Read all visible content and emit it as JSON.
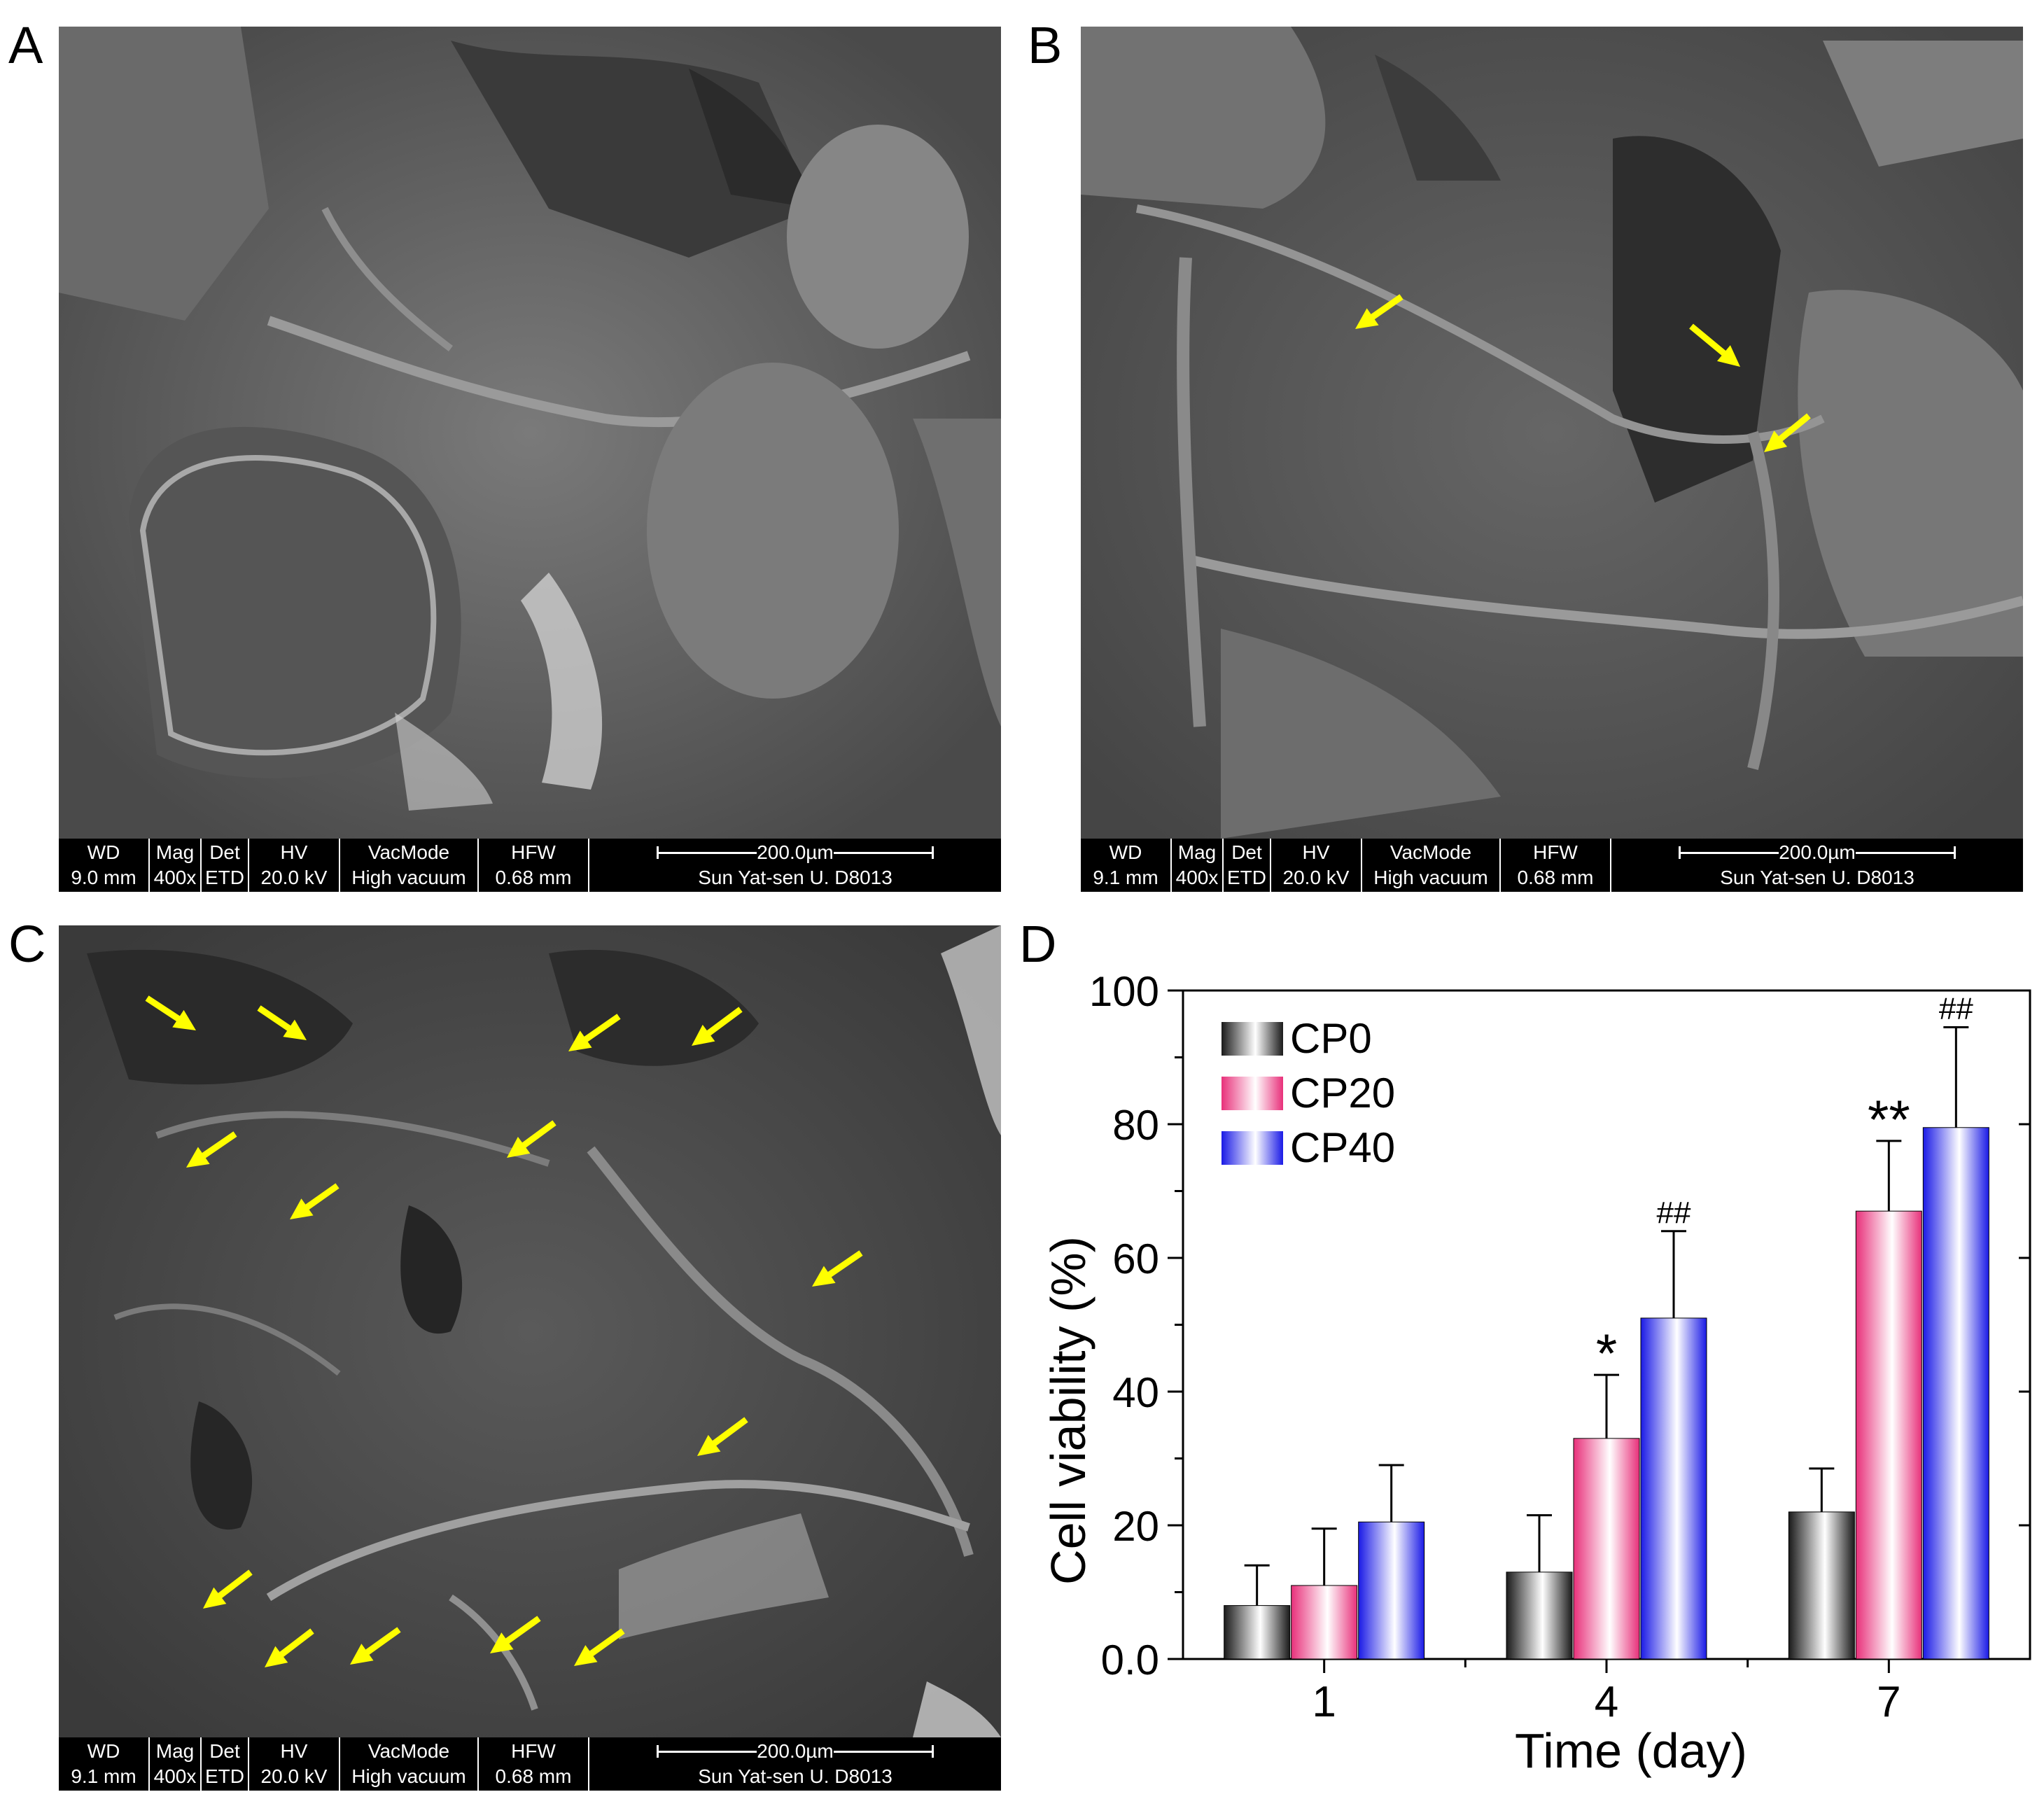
{
  "panels": {
    "a": {
      "letter": "A",
      "info": {
        "wd": {
          "label": "WD",
          "value": "9.0 mm"
        },
        "mag": {
          "label": "Mag",
          "value": "400x"
        },
        "det": {
          "label": "Det",
          "value": "ETD"
        },
        "hv": {
          "label": "HV",
          "value": "20.0 kV"
        },
        "vac": {
          "label": "VacMode",
          "value": "High vacuum"
        },
        "hfw": {
          "label": "HFW",
          "value": "0.68 mm"
        },
        "scale": "200.0µm",
        "institution": "Sun Yat-sen U. D8013"
      }
    },
    "b": {
      "letter": "B",
      "info": {
        "wd": {
          "label": "WD",
          "value": "9.1 mm"
        },
        "mag": {
          "label": "Mag",
          "value": "400x"
        },
        "det": {
          "label": "Det",
          "value": "ETD"
        },
        "hv": {
          "label": "HV",
          "value": "20.0 kV"
        },
        "vac": {
          "label": "VacMode",
          "value": "High vacuum"
        },
        "hfw": {
          "label": "HFW",
          "value": "0.68 mm"
        },
        "scale": "200.0µm",
        "institution": "Sun Yat-sen U. D8013"
      }
    },
    "c": {
      "letter": "C",
      "info": {
        "wd": {
          "label": "WD",
          "value": "9.1 mm"
        },
        "mag": {
          "label": "Mag",
          "value": "400x"
        },
        "det": {
          "label": "Det",
          "value": "ETD"
        },
        "hv": {
          "label": "HV",
          "value": "20.0 kV"
        },
        "vac": {
          "label": "VacMode",
          "value": "High vacuum"
        },
        "hfw": {
          "label": "HFW",
          "value": "0.68 mm"
        },
        "scale": "200.0µm",
        "institution": "Sun Yat-sen U. D8013"
      }
    },
    "d": {
      "letter": "D"
    }
  },
  "arrow_color": "#ffff00",
  "chart_data": {
    "type": "bar",
    "categories": [
      "1",
      "4",
      "7"
    ],
    "xlabel": "Time (day)",
    "ylabel": "Cell viability (%)",
    "ylim": [
      0,
      100
    ],
    "yticks": [
      "0.0",
      "20",
      "40",
      "60",
      "80",
      "100"
    ],
    "legend_position": "top-left",
    "series": [
      {
        "name": "CP0",
        "color": "#222222",
        "values": [
          8,
          13,
          22
        ],
        "errors": [
          6,
          8.5,
          6.5
        ],
        "annotations": [
          "",
          "",
          ""
        ]
      },
      {
        "name": "CP20",
        "color": "#e8307a",
        "values": [
          11,
          33,
          67
        ],
        "errors": [
          8.5,
          9.5,
          10.5
        ],
        "annotations": [
          "",
          "*",
          "**"
        ]
      },
      {
        "name": "CP40",
        "color": "#1a1ae6",
        "values": [
          20.5,
          51,
          79.5
        ],
        "errors": [
          8.5,
          13,
          15
        ],
        "annotations": [
          "",
          "##",
          "##"
        ]
      }
    ]
  }
}
